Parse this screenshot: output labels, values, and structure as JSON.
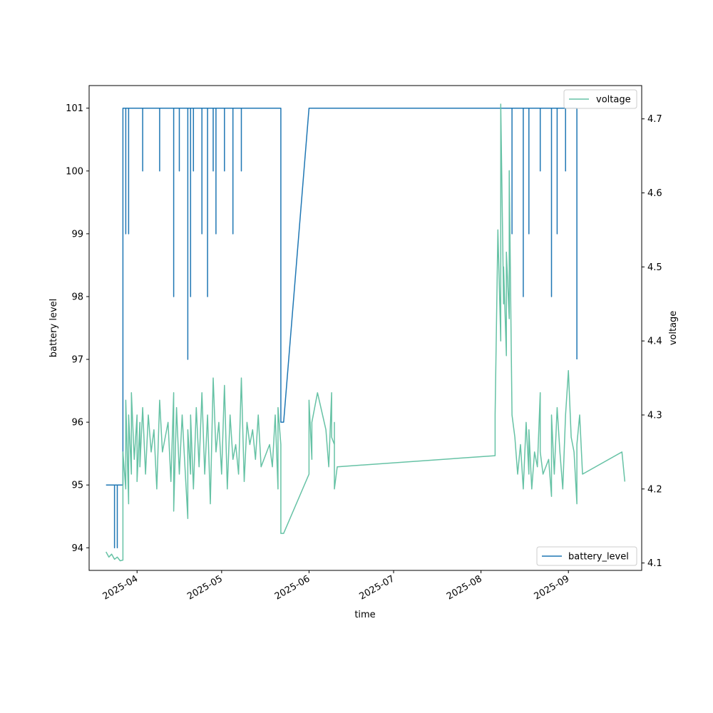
{
  "chart_data": {
    "type": "line",
    "xlabel": "time",
    "ylabel_left": "battery level",
    "ylabel_right": "voltage",
    "x_ticks": [
      "2025-04",
      "2025-05",
      "2025-06",
      "2025-07",
      "2025-08",
      "2025-09"
    ],
    "xlim": [
      "2025-03-15",
      "2025-09-27"
    ],
    "y_left_ticks": [
      "94",
      "95",
      "96",
      "97",
      "98",
      "99",
      "100",
      "101"
    ],
    "ylim_left": [
      93.64,
      101.36
    ],
    "y_right_ticks": [
      "4.1",
      "4.2",
      "4.3",
      "4.4",
      "4.5",
      "4.6",
      "4.7"
    ],
    "ylim_right": [
      4.09,
      4.745
    ],
    "legend_left": {
      "label": "battery_level",
      "placement": "lower-right"
    },
    "legend_right": {
      "label": "voltage",
      "placement": "upper-right"
    },
    "colors": {
      "battery_level": "#1f77b4",
      "voltage": "#66c2a5"
    },
    "series": [
      {
        "name": "battery_level",
        "axis": "left",
        "points": [
          [
            "2025-03-21",
            95
          ],
          [
            "2025-03-24",
            95
          ],
          [
            "2025-03-24",
            94
          ],
          [
            "2025-03-24",
            95
          ],
          [
            "2025-03-25",
            95
          ],
          [
            "2025-03-25",
            94
          ],
          [
            "2025-03-25",
            95
          ],
          [
            "2025-03-27",
            95
          ],
          [
            "2025-03-27",
            101
          ],
          [
            "2025-03-28",
            101
          ],
          [
            "2025-03-28",
            99
          ],
          [
            "2025-03-28",
            101
          ],
          [
            "2025-03-29",
            101
          ],
          [
            "2025-03-29",
            99
          ],
          [
            "2025-03-29",
            101
          ],
          [
            "2025-04-03",
            101
          ],
          [
            "2025-04-03",
            100
          ],
          [
            "2025-04-03",
            101
          ],
          [
            "2025-04-09",
            101
          ],
          [
            "2025-04-09",
            100
          ],
          [
            "2025-04-09",
            101
          ],
          [
            "2025-04-14",
            101
          ],
          [
            "2025-04-14",
            98
          ],
          [
            "2025-04-14",
            101
          ],
          [
            "2025-04-16",
            101
          ],
          [
            "2025-04-16",
            100
          ],
          [
            "2025-04-16",
            101
          ],
          [
            "2025-04-19",
            101
          ],
          [
            "2025-04-19",
            97
          ],
          [
            "2025-04-19",
            101
          ],
          [
            "2025-04-20",
            101
          ],
          [
            "2025-04-20",
            98
          ],
          [
            "2025-04-20",
            101
          ],
          [
            "2025-04-21",
            101
          ],
          [
            "2025-04-21",
            100
          ],
          [
            "2025-04-21",
            101
          ],
          [
            "2025-04-24",
            101
          ],
          [
            "2025-04-24",
            99
          ],
          [
            "2025-04-24",
            101
          ],
          [
            "2025-04-26",
            101
          ],
          [
            "2025-04-26",
            98
          ],
          [
            "2025-04-26",
            101
          ],
          [
            "2025-04-28",
            101
          ],
          [
            "2025-04-28",
            100
          ],
          [
            "2025-04-28",
            101
          ],
          [
            "2025-04-29",
            101
          ],
          [
            "2025-04-29",
            99
          ],
          [
            "2025-04-29",
            101
          ],
          [
            "2025-05-02",
            101
          ],
          [
            "2025-05-02",
            100
          ],
          [
            "2025-05-02",
            101
          ],
          [
            "2025-05-05",
            101
          ],
          [
            "2025-05-05",
            99
          ],
          [
            "2025-05-05",
            101
          ],
          [
            "2025-05-08",
            101
          ],
          [
            "2025-05-08",
            100
          ],
          [
            "2025-05-08",
            101
          ],
          [
            "2025-05-22",
            101
          ],
          [
            "2025-05-22",
            96
          ],
          [
            "2025-05-23",
            96
          ],
          [
            "2025-06-01",
            101
          ],
          [
            "2025-08-12",
            101
          ],
          [
            "2025-08-12",
            99
          ],
          [
            "2025-08-12",
            101
          ],
          [
            "2025-08-16",
            101
          ],
          [
            "2025-08-16",
            98
          ],
          [
            "2025-08-16",
            101
          ],
          [
            "2025-08-18",
            101
          ],
          [
            "2025-08-18",
            99
          ],
          [
            "2025-08-18",
            101
          ],
          [
            "2025-08-22",
            101
          ],
          [
            "2025-08-22",
            100
          ],
          [
            "2025-08-22",
            101
          ],
          [
            "2025-08-26",
            101
          ],
          [
            "2025-08-26",
            98
          ],
          [
            "2025-08-26",
            101
          ],
          [
            "2025-08-28",
            101
          ],
          [
            "2025-08-28",
            99
          ],
          [
            "2025-08-28",
            101
          ],
          [
            "2025-08-31",
            101
          ],
          [
            "2025-08-31",
            100
          ],
          [
            "2025-08-31",
            101
          ],
          [
            "2025-09-04",
            101
          ],
          [
            "2025-09-04",
            97
          ]
        ]
      },
      {
        "name": "voltage",
        "axis": "right",
        "points": [
          [
            "2025-03-21",
            4.115
          ],
          [
            "2025-03-22",
            4.108
          ],
          [
            "2025-03-23",
            4.112
          ],
          [
            "2025-03-24",
            4.105
          ],
          [
            "2025-03-25",
            4.108
          ],
          [
            "2025-03-26",
            4.103
          ],
          [
            "2025-03-27",
            4.104
          ],
          [
            "2025-03-27",
            4.25
          ],
          [
            "2025-03-28",
            4.2
          ],
          [
            "2025-03-28",
            4.32
          ],
          [
            "2025-03-29",
            4.18
          ],
          [
            "2025-03-29",
            4.3
          ],
          [
            "2025-03-30",
            4.22
          ],
          [
            "2025-03-30",
            4.33
          ],
          [
            "2025-03-31",
            4.24
          ],
          [
            "2025-04-01",
            4.3
          ],
          [
            "2025-04-01",
            4.21
          ],
          [
            "2025-04-02",
            4.29
          ],
          [
            "2025-04-02",
            4.23
          ],
          [
            "2025-04-03",
            4.31
          ],
          [
            "2025-04-04",
            4.22
          ],
          [
            "2025-04-05",
            4.3
          ],
          [
            "2025-04-06",
            4.25
          ],
          [
            "2025-04-07",
            4.28
          ],
          [
            "2025-04-08",
            4.2
          ],
          [
            "2025-04-09",
            4.32
          ],
          [
            "2025-04-10",
            4.25
          ],
          [
            "2025-04-12",
            4.29
          ],
          [
            "2025-04-13",
            4.21
          ],
          [
            "2025-04-14",
            4.33
          ],
          [
            "2025-04-14",
            4.17
          ],
          [
            "2025-04-15",
            4.31
          ],
          [
            "2025-04-16",
            4.22
          ],
          [
            "2025-04-17",
            4.3
          ],
          [
            "2025-04-18",
            4.23
          ],
          [
            "2025-04-19",
            4.16
          ],
          [
            "2025-04-19",
            4.28
          ],
          [
            "2025-04-20",
            4.22
          ],
          [
            "2025-04-20",
            4.3
          ],
          [
            "2025-04-21",
            4.2
          ],
          [
            "2025-04-22",
            4.31
          ],
          [
            "2025-04-23",
            4.23
          ],
          [
            "2025-04-24",
            4.33
          ],
          [
            "2025-04-25",
            4.22
          ],
          [
            "2025-04-26",
            4.3
          ],
          [
            "2025-04-27",
            4.18
          ],
          [
            "2025-04-28",
            4.35
          ],
          [
            "2025-04-29",
            4.25
          ],
          [
            "2025-04-30",
            4.29
          ],
          [
            "2025-05-01",
            4.22
          ],
          [
            "2025-05-02",
            4.34
          ],
          [
            "2025-05-03",
            4.2
          ],
          [
            "2025-05-04",
            4.3
          ],
          [
            "2025-05-05",
            4.24
          ],
          [
            "2025-05-06",
            4.26
          ],
          [
            "2025-05-07",
            4.22
          ],
          [
            "2025-05-08",
            4.35
          ],
          [
            "2025-05-09",
            4.21
          ],
          [
            "2025-05-10",
            4.29
          ],
          [
            "2025-05-11",
            4.26
          ],
          [
            "2025-05-12",
            4.28
          ],
          [
            "2025-05-13",
            4.24
          ],
          [
            "2025-05-14",
            4.3
          ],
          [
            "2025-05-15",
            4.23
          ],
          [
            "2025-05-17",
            4.25
          ],
          [
            "2025-05-18",
            4.26
          ],
          [
            "2025-05-19",
            4.23
          ],
          [
            "2025-05-20",
            4.3
          ],
          [
            "2025-05-21",
            4.2
          ],
          [
            "2025-05-21",
            4.31
          ],
          [
            "2025-05-22",
            4.26
          ],
          [
            "2025-05-22",
            4.14
          ],
          [
            "2025-05-23",
            4.14
          ],
          [
            "2025-06-01",
            4.22
          ],
          [
            "2025-06-01",
            4.32
          ],
          [
            "2025-06-02",
            4.24
          ],
          [
            "2025-06-02",
            4.29
          ],
          [
            "2025-06-04",
            4.33
          ],
          [
            "2025-06-07",
            4.28
          ],
          [
            "2025-06-08",
            4.23
          ],
          [
            "2025-06-09",
            4.33
          ],
          [
            "2025-06-09",
            4.27
          ],
          [
            "2025-06-10",
            4.26
          ],
          [
            "2025-06-10",
            4.29
          ],
          [
            "2025-06-10",
            4.2
          ],
          [
            "2025-06-11",
            4.23
          ],
          [
            "2025-08-06",
            4.245
          ],
          [
            "2025-08-06",
            4.3
          ],
          [
            "2025-08-07",
            4.55
          ],
          [
            "2025-08-08",
            4.4
          ],
          [
            "2025-08-08",
            4.72
          ],
          [
            "2025-08-09",
            4.45
          ],
          [
            "2025-08-09",
            4.5
          ],
          [
            "2025-08-10",
            4.38
          ],
          [
            "2025-08-10",
            4.52
          ],
          [
            "2025-08-11",
            4.43
          ],
          [
            "2025-08-11",
            4.63
          ],
          [
            "2025-08-12",
            4.3
          ],
          [
            "2025-08-13",
            4.27
          ],
          [
            "2025-08-14",
            4.22
          ],
          [
            "2025-08-15",
            4.26
          ],
          [
            "2025-08-16",
            4.2
          ],
          [
            "2025-08-17",
            4.29
          ],
          [
            "2025-08-18",
            4.22
          ],
          [
            "2025-08-18",
            4.28
          ],
          [
            "2025-08-19",
            4.2
          ],
          [
            "2025-08-20",
            4.25
          ],
          [
            "2025-08-21",
            4.23
          ],
          [
            "2025-08-22",
            4.33
          ],
          [
            "2025-08-22",
            4.25
          ],
          [
            "2025-08-23",
            4.22
          ],
          [
            "2025-08-25",
            4.24
          ],
          [
            "2025-08-26",
            4.19
          ],
          [
            "2025-08-26",
            4.3
          ],
          [
            "2025-08-27",
            4.22
          ],
          [
            "2025-08-28",
            4.31
          ],
          [
            "2025-08-29",
            4.25
          ],
          [
            "2025-08-30",
            4.2
          ],
          [
            "2025-08-31",
            4.3
          ],
          [
            "2025-09-01",
            4.36
          ],
          [
            "2025-09-02",
            4.27
          ],
          [
            "2025-09-03",
            4.25
          ],
          [
            "2025-09-04",
            4.18
          ],
          [
            "2025-09-04",
            4.26
          ],
          [
            "2025-09-05",
            4.3
          ],
          [
            "2025-09-06",
            4.22
          ],
          [
            "2025-09-20",
            4.25
          ],
          [
            "2025-09-21",
            4.21
          ]
        ]
      }
    ]
  }
}
